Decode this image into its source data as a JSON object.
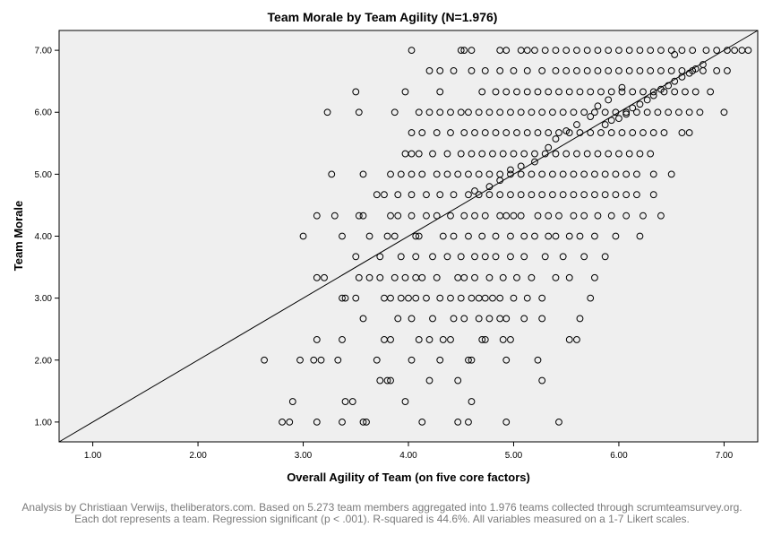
{
  "chart_data": {
    "type": "scatter",
    "title": "Team Morale by Team Agility (N=1.976)",
    "xlabel": "Overall Agility of Team (on five core factors)",
    "ylabel": "Team Morale",
    "xlim": [
      0.68,
      7.32
    ],
    "ylim": [
      0.68,
      7.32
    ],
    "x_ticks": [
      "1.00",
      "2.00",
      "3.00",
      "4.00",
      "5.00",
      "6.00",
      "7.00"
    ],
    "y_ticks": [
      "1.00",
      "2.00",
      "3.00",
      "4.00",
      "5.00",
      "6.00",
      "7.00"
    ],
    "grid": false,
    "plot_background": "#efefef",
    "marker_color": "#000000",
    "reference_line": {
      "from": [
        0.68,
        0.68
      ],
      "to": [
        7.32,
        7.32
      ]
    },
    "points": [
      [
        2.8,
        1.0
      ],
      [
        2.87,
        1.0
      ],
      [
        3.13,
        1.0
      ],
      [
        3.37,
        1.0
      ],
      [
        3.57,
        1.0
      ],
      [
        3.6,
        1.0
      ],
      [
        4.13,
        1.0
      ],
      [
        4.47,
        1.0
      ],
      [
        4.57,
        1.0
      ],
      [
        4.93,
        1.0
      ],
      [
        5.43,
        1.0
      ],
      [
        2.9,
        1.33
      ],
      [
        3.4,
        1.33
      ],
      [
        3.47,
        1.33
      ],
      [
        3.97,
        1.33
      ],
      [
        4.6,
        1.33
      ],
      [
        3.73,
        1.67
      ],
      [
        3.8,
        1.67
      ],
      [
        3.83,
        1.67
      ],
      [
        4.2,
        1.67
      ],
      [
        4.47,
        1.67
      ],
      [
        5.27,
        1.67
      ],
      [
        2.63,
        2.0
      ],
      [
        2.97,
        2.0
      ],
      [
        3.1,
        2.0
      ],
      [
        3.17,
        2.0
      ],
      [
        3.33,
        2.0
      ],
      [
        3.7,
        2.0
      ],
      [
        4.03,
        2.0
      ],
      [
        4.3,
        2.0
      ],
      [
        4.57,
        2.0
      ],
      [
        4.6,
        2.0
      ],
      [
        4.93,
        2.0
      ],
      [
        5.23,
        2.0
      ],
      [
        3.13,
        2.33
      ],
      [
        3.37,
        2.33
      ],
      [
        3.77,
        2.33
      ],
      [
        3.83,
        2.33
      ],
      [
        4.1,
        2.33
      ],
      [
        4.2,
        2.33
      ],
      [
        4.33,
        2.33
      ],
      [
        4.4,
        2.33
      ],
      [
        4.7,
        2.33
      ],
      [
        4.73,
        2.33
      ],
      [
        4.9,
        2.33
      ],
      [
        4.97,
        2.33
      ],
      [
        5.53,
        2.33
      ],
      [
        5.6,
        2.33
      ],
      [
        3.57,
        2.67
      ],
      [
        3.9,
        2.67
      ],
      [
        4.03,
        2.67
      ],
      [
        4.23,
        2.67
      ],
      [
        4.43,
        2.67
      ],
      [
        4.53,
        2.67
      ],
      [
        4.67,
        2.67
      ],
      [
        4.77,
        2.67
      ],
      [
        4.87,
        2.67
      ],
      [
        4.93,
        2.67
      ],
      [
        5.1,
        2.67
      ],
      [
        5.27,
        2.67
      ],
      [
        5.63,
        2.67
      ],
      [
        3.37,
        3.0
      ],
      [
        3.4,
        3.0
      ],
      [
        3.5,
        3.0
      ],
      [
        3.77,
        3.0
      ],
      [
        3.83,
        3.0
      ],
      [
        3.93,
        3.0
      ],
      [
        4.0,
        3.0
      ],
      [
        4.07,
        3.0
      ],
      [
        4.17,
        3.0
      ],
      [
        4.3,
        3.0
      ],
      [
        4.4,
        3.0
      ],
      [
        4.5,
        3.0
      ],
      [
        4.6,
        3.0
      ],
      [
        4.67,
        3.0
      ],
      [
        4.73,
        3.0
      ],
      [
        4.8,
        3.0
      ],
      [
        4.87,
        3.0
      ],
      [
        5.0,
        3.0
      ],
      [
        5.13,
        3.0
      ],
      [
        5.27,
        3.0
      ],
      [
        5.73,
        3.0
      ],
      [
        3.13,
        3.33
      ],
      [
        3.2,
        3.33
      ],
      [
        3.53,
        3.33
      ],
      [
        3.63,
        3.33
      ],
      [
        3.73,
        3.33
      ],
      [
        3.87,
        3.33
      ],
      [
        3.97,
        3.33
      ],
      [
        4.07,
        3.33
      ],
      [
        4.13,
        3.33
      ],
      [
        4.27,
        3.33
      ],
      [
        4.47,
        3.33
      ],
      [
        4.53,
        3.33
      ],
      [
        4.63,
        3.33
      ],
      [
        4.77,
        3.33
      ],
      [
        4.9,
        3.33
      ],
      [
        5.03,
        3.33
      ],
      [
        5.17,
        3.33
      ],
      [
        5.4,
        3.33
      ],
      [
        5.53,
        3.33
      ],
      [
        5.77,
        3.33
      ],
      [
        3.5,
        3.67
      ],
      [
        3.73,
        3.67
      ],
      [
        3.93,
        3.67
      ],
      [
        4.07,
        3.67
      ],
      [
        4.23,
        3.67
      ],
      [
        4.37,
        3.67
      ],
      [
        4.5,
        3.67
      ],
      [
        4.63,
        3.67
      ],
      [
        4.73,
        3.67
      ],
      [
        4.83,
        3.67
      ],
      [
        4.97,
        3.67
      ],
      [
        5.1,
        3.67
      ],
      [
        5.3,
        3.67
      ],
      [
        5.47,
        3.67
      ],
      [
        5.67,
        3.67
      ],
      [
        5.87,
        3.67
      ],
      [
        3.0,
        4.0
      ],
      [
        3.37,
        4.0
      ],
      [
        3.63,
        4.0
      ],
      [
        3.8,
        4.0
      ],
      [
        3.87,
        4.0
      ],
      [
        4.07,
        4.0
      ],
      [
        4.1,
        4.0
      ],
      [
        4.33,
        4.0
      ],
      [
        4.43,
        4.0
      ],
      [
        4.57,
        4.0
      ],
      [
        4.7,
        4.0
      ],
      [
        4.83,
        4.0
      ],
      [
        4.97,
        4.0
      ],
      [
        5.1,
        4.0
      ],
      [
        5.2,
        4.0
      ],
      [
        5.33,
        4.0
      ],
      [
        5.4,
        4.0
      ],
      [
        5.53,
        4.0
      ],
      [
        5.63,
        4.0
      ],
      [
        5.77,
        4.0
      ],
      [
        5.97,
        4.0
      ],
      [
        6.2,
        4.0
      ],
      [
        3.13,
        4.33
      ],
      [
        3.3,
        4.33
      ],
      [
        3.53,
        4.33
      ],
      [
        3.57,
        4.33
      ],
      [
        3.83,
        4.33
      ],
      [
        3.9,
        4.33
      ],
      [
        4.03,
        4.33
      ],
      [
        4.17,
        4.33
      ],
      [
        4.27,
        4.33
      ],
      [
        4.4,
        4.33
      ],
      [
        4.53,
        4.33
      ],
      [
        4.63,
        4.33
      ],
      [
        4.73,
        4.33
      ],
      [
        4.87,
        4.33
      ],
      [
        4.93,
        4.33
      ],
      [
        5.0,
        4.33
      ],
      [
        5.07,
        4.33
      ],
      [
        5.23,
        4.33
      ],
      [
        5.33,
        4.33
      ],
      [
        5.43,
        4.33
      ],
      [
        5.57,
        4.33
      ],
      [
        5.67,
        4.33
      ],
      [
        5.8,
        4.33
      ],
      [
        5.93,
        4.33
      ],
      [
        6.07,
        4.33
      ],
      [
        6.23,
        4.33
      ],
      [
        6.4,
        4.33
      ],
      [
        3.7,
        4.67
      ],
      [
        3.77,
        4.67
      ],
      [
        3.9,
        4.67
      ],
      [
        4.03,
        4.67
      ],
      [
        4.17,
        4.67
      ],
      [
        4.3,
        4.67
      ],
      [
        4.43,
        4.67
      ],
      [
        4.57,
        4.67
      ],
      [
        4.67,
        4.67
      ],
      [
        4.77,
        4.67
      ],
      [
        4.87,
        4.67
      ],
      [
        4.97,
        4.67
      ],
      [
        5.07,
        4.67
      ],
      [
        5.17,
        4.67
      ],
      [
        5.27,
        4.67
      ],
      [
        5.37,
        4.67
      ],
      [
        5.47,
        4.67
      ],
      [
        5.57,
        4.67
      ],
      [
        5.67,
        4.67
      ],
      [
        5.77,
        4.67
      ],
      [
        5.87,
        4.67
      ],
      [
        5.97,
        4.67
      ],
      [
        6.07,
        4.67
      ],
      [
        6.17,
        4.67
      ],
      [
        6.33,
        4.67
      ],
      [
        3.27,
        5.0
      ],
      [
        3.57,
        5.0
      ],
      [
        3.83,
        5.0
      ],
      [
        3.93,
        5.0
      ],
      [
        4.03,
        5.0
      ],
      [
        4.13,
        5.0
      ],
      [
        4.27,
        5.0
      ],
      [
        4.37,
        5.0
      ],
      [
        4.47,
        5.0
      ],
      [
        4.57,
        5.0
      ],
      [
        4.67,
        5.0
      ],
      [
        4.77,
        5.0
      ],
      [
        4.87,
        5.0
      ],
      [
        4.97,
        5.0
      ],
      [
        5.07,
        5.0
      ],
      [
        5.17,
        5.0
      ],
      [
        5.27,
        5.0
      ],
      [
        5.37,
        5.0
      ],
      [
        5.47,
        5.0
      ],
      [
        5.57,
        5.0
      ],
      [
        5.67,
        5.0
      ],
      [
        5.77,
        5.0
      ],
      [
        5.87,
        5.0
      ],
      [
        5.97,
        5.0
      ],
      [
        6.07,
        5.0
      ],
      [
        6.17,
        5.0
      ],
      [
        6.33,
        5.0
      ],
      [
        6.5,
        5.0
      ],
      [
        3.97,
        5.33
      ],
      [
        4.03,
        5.33
      ],
      [
        4.1,
        5.33
      ],
      [
        4.23,
        5.33
      ],
      [
        4.37,
        5.33
      ],
      [
        4.5,
        5.33
      ],
      [
        4.6,
        5.33
      ],
      [
        4.7,
        5.33
      ],
      [
        4.8,
        5.33
      ],
      [
        4.9,
        5.33
      ],
      [
        5.0,
        5.33
      ],
      [
        5.1,
        5.33
      ],
      [
        5.2,
        5.33
      ],
      [
        5.3,
        5.33
      ],
      [
        5.4,
        5.33
      ],
      [
        5.5,
        5.33
      ],
      [
        5.6,
        5.33
      ],
      [
        5.7,
        5.33
      ],
      [
        5.8,
        5.33
      ],
      [
        5.9,
        5.33
      ],
      [
        6.0,
        5.33
      ],
      [
        6.1,
        5.33
      ],
      [
        6.2,
        5.33
      ],
      [
        6.3,
        5.33
      ],
      [
        4.03,
        5.67
      ],
      [
        4.13,
        5.67
      ],
      [
        4.27,
        5.67
      ],
      [
        4.4,
        5.67
      ],
      [
        4.53,
        5.67
      ],
      [
        4.63,
        5.67
      ],
      [
        4.73,
        5.67
      ],
      [
        4.83,
        5.67
      ],
      [
        4.93,
        5.67
      ],
      [
        5.03,
        5.67
      ],
      [
        5.13,
        5.67
      ],
      [
        5.23,
        5.67
      ],
      [
        5.33,
        5.67
      ],
      [
        5.43,
        5.67
      ],
      [
        5.53,
        5.67
      ],
      [
        5.63,
        5.67
      ],
      [
        5.73,
        5.67
      ],
      [
        5.83,
        5.67
      ],
      [
        5.93,
        5.67
      ],
      [
        6.03,
        5.67
      ],
      [
        6.13,
        5.67
      ],
      [
        6.23,
        5.67
      ],
      [
        6.33,
        5.67
      ],
      [
        6.43,
        5.67
      ],
      [
        6.6,
        5.67
      ],
      [
        6.67,
        5.67
      ],
      [
        3.23,
        6.0
      ],
      [
        3.53,
        6.0
      ],
      [
        3.87,
        6.0
      ],
      [
        4.1,
        6.0
      ],
      [
        4.2,
        6.0
      ],
      [
        4.3,
        6.0
      ],
      [
        4.4,
        6.0
      ],
      [
        4.5,
        6.0
      ],
      [
        4.57,
        6.0
      ],
      [
        4.67,
        6.0
      ],
      [
        4.77,
        6.0
      ],
      [
        4.87,
        6.0
      ],
      [
        4.97,
        6.0
      ],
      [
        5.07,
        6.0
      ],
      [
        5.17,
        6.0
      ],
      [
        5.27,
        6.0
      ],
      [
        5.37,
        6.0
      ],
      [
        5.47,
        6.0
      ],
      [
        5.57,
        6.0
      ],
      [
        5.67,
        6.0
      ],
      [
        5.77,
        6.0
      ],
      [
        5.87,
        6.0
      ],
      [
        5.97,
        6.0
      ],
      [
        6.07,
        6.0
      ],
      [
        6.17,
        6.0
      ],
      [
        6.27,
        6.0
      ],
      [
        6.37,
        6.0
      ],
      [
        6.47,
        6.0
      ],
      [
        6.57,
        6.0
      ],
      [
        6.67,
        6.0
      ],
      [
        6.77,
        6.0
      ],
      [
        7.0,
        6.0
      ],
      [
        3.5,
        6.33
      ],
      [
        3.97,
        6.33
      ],
      [
        4.3,
        6.33
      ],
      [
        4.7,
        6.33
      ],
      [
        4.83,
        6.33
      ],
      [
        4.93,
        6.33
      ],
      [
        5.03,
        6.33
      ],
      [
        5.13,
        6.33
      ],
      [
        5.23,
        6.33
      ],
      [
        5.33,
        6.33
      ],
      [
        5.43,
        6.33
      ],
      [
        5.53,
        6.33
      ],
      [
        5.63,
        6.33
      ],
      [
        5.73,
        6.33
      ],
      [
        5.83,
        6.33
      ],
      [
        5.93,
        6.33
      ],
      [
        6.03,
        6.33
      ],
      [
        6.13,
        6.33
      ],
      [
        6.23,
        6.33
      ],
      [
        6.33,
        6.33
      ],
      [
        6.43,
        6.33
      ],
      [
        6.53,
        6.33
      ],
      [
        6.63,
        6.33
      ],
      [
        6.73,
        6.33
      ],
      [
        6.87,
        6.33
      ],
      [
        4.2,
        6.67
      ],
      [
        4.3,
        6.67
      ],
      [
        4.43,
        6.67
      ],
      [
        4.6,
        6.67
      ],
      [
        4.73,
        6.67
      ],
      [
        4.87,
        6.67
      ],
      [
        5.0,
        6.67
      ],
      [
        5.13,
        6.67
      ],
      [
        5.27,
        6.67
      ],
      [
        5.4,
        6.67
      ],
      [
        5.5,
        6.67
      ],
      [
        5.6,
        6.67
      ],
      [
        5.7,
        6.67
      ],
      [
        5.8,
        6.67
      ],
      [
        5.9,
        6.67
      ],
      [
        6.0,
        6.67
      ],
      [
        6.1,
        6.67
      ],
      [
        6.2,
        6.67
      ],
      [
        6.3,
        6.67
      ],
      [
        6.4,
        6.67
      ],
      [
        6.5,
        6.67
      ],
      [
        6.6,
        6.67
      ],
      [
        6.7,
        6.67
      ],
      [
        6.8,
        6.67
      ],
      [
        6.93,
        6.67
      ],
      [
        7.03,
        6.67
      ],
      [
        4.03,
        7.0
      ],
      [
        4.5,
        7.0
      ],
      [
        4.53,
        7.0
      ],
      [
        4.6,
        7.0
      ],
      [
        4.87,
        7.0
      ],
      [
        4.93,
        7.0
      ],
      [
        5.07,
        7.0
      ],
      [
        5.13,
        7.0
      ],
      [
        5.2,
        7.0
      ],
      [
        5.3,
        7.0
      ],
      [
        5.4,
        7.0
      ],
      [
        5.5,
        7.0
      ],
      [
        5.6,
        7.0
      ],
      [
        5.7,
        7.0
      ],
      [
        5.8,
        7.0
      ],
      [
        5.9,
        7.0
      ],
      [
        6.0,
        7.0
      ],
      [
        6.1,
        7.0
      ],
      [
        6.2,
        7.0
      ],
      [
        6.3,
        7.0
      ],
      [
        6.4,
        7.0
      ],
      [
        6.5,
        7.0
      ],
      [
        6.6,
        7.0
      ],
      [
        6.7,
        7.0
      ],
      [
        6.83,
        7.0
      ],
      [
        6.93,
        7.0
      ],
      [
        7.03,
        7.0
      ],
      [
        7.1,
        7.0
      ],
      [
        7.17,
        7.0
      ],
      [
        7.23,
        7.0
      ],
      [
        5.87,
        5.8
      ],
      [
        5.93,
        5.87
      ],
      [
        6.0,
        5.9
      ],
      [
        6.07,
        5.97
      ],
      [
        6.13,
        6.07
      ],
      [
        6.2,
        6.13
      ],
      [
        6.27,
        6.2
      ],
      [
        6.33,
        6.27
      ],
      [
        6.4,
        6.37
      ],
      [
        6.47,
        6.43
      ],
      [
        6.53,
        6.5
      ],
      [
        6.6,
        6.57
      ],
      [
        6.67,
        6.63
      ],
      [
        6.73,
        6.7
      ],
      [
        6.8,
        6.77
      ],
      [
        6.53,
        6.93
      ],
      [
        5.73,
        5.93
      ],
      [
        5.8,
        6.1
      ],
      [
        5.9,
        6.2
      ],
      [
        6.03,
        6.4
      ],
      [
        5.6,
        5.8
      ],
      [
        5.5,
        5.7
      ],
      [
        5.4,
        5.57
      ],
      [
        5.33,
        5.43
      ],
      [
        5.2,
        5.2
      ],
      [
        5.07,
        5.13
      ],
      [
        4.97,
        5.07
      ],
      [
        4.87,
        4.9
      ],
      [
        4.77,
        4.8
      ],
      [
        4.63,
        4.73
      ]
    ]
  },
  "footnote": "Analysis by Christiaan Verwijs, theliberators.com. Based on 5.273 team members aggregated into 1.976 teams collected through scrumteamsurvey.org. Each dot represents a team. Regression significant (p < .001). R-squared is 44.6%. All variables measured on a 1-7 Likert scales."
}
